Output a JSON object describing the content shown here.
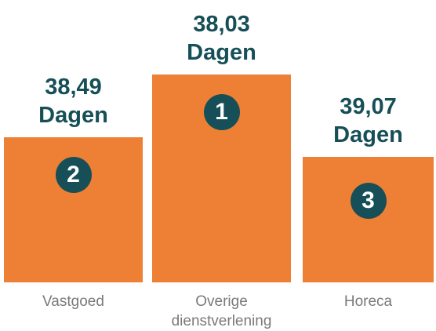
{
  "chart_data": {
    "type": "podium",
    "categories": [
      "Vastgoed",
      "Overige dienstverlening",
      "Horeca"
    ],
    "values": [
      38.49,
      38.03,
      39.07
    ],
    "value_labels": [
      "38,49\nDagen",
      "38,03\nDagen",
      "39,07\nDagen"
    ],
    "ranks": [
      2,
      1,
      3
    ],
    "color": "#ed8035"
  }
}
